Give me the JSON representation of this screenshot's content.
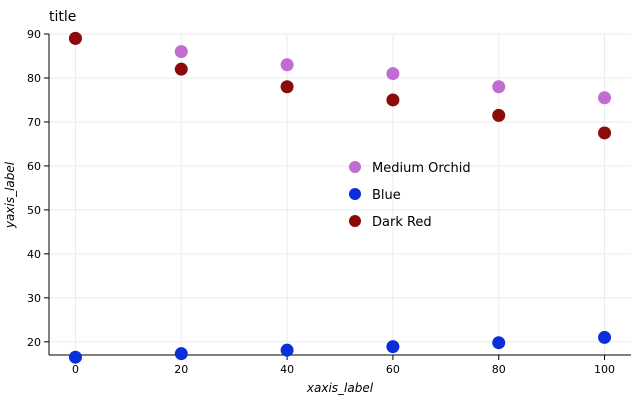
{
  "chart_data": {
    "type": "scatter",
    "title": "title",
    "xlabel": "xaxis_label",
    "ylabel": "yaxis_label",
    "xlim": [
      -5,
      105
    ],
    "ylim": [
      17,
      90
    ],
    "xticks": [
      0,
      20,
      40,
      60,
      80,
      100
    ],
    "yticks": [
      20,
      30,
      40,
      50,
      60,
      70,
      80,
      90
    ],
    "grid": true,
    "legend_position": "center-right",
    "series": [
      {
        "name": "Medium Orchid",
        "color": "#c06cd0",
        "x": [
          0,
          20,
          40,
          60,
          80,
          100
        ],
        "y": [
          89,
          86,
          83,
          81,
          78,
          75.5
        ]
      },
      {
        "name": "Blue",
        "color": "#0a2ed8",
        "x": [
          0,
          20,
          40,
          60,
          80,
          100
        ],
        "y": [
          16.5,
          17.3,
          18.1,
          18.9,
          19.8,
          21
        ]
      },
      {
        "name": "Dark Red",
        "color": "#8b0b0b",
        "x": [
          0,
          20,
          40,
          60,
          80,
          100
        ],
        "y": [
          89,
          82,
          78,
          75,
          71.5,
          67.5
        ]
      }
    ]
  }
}
